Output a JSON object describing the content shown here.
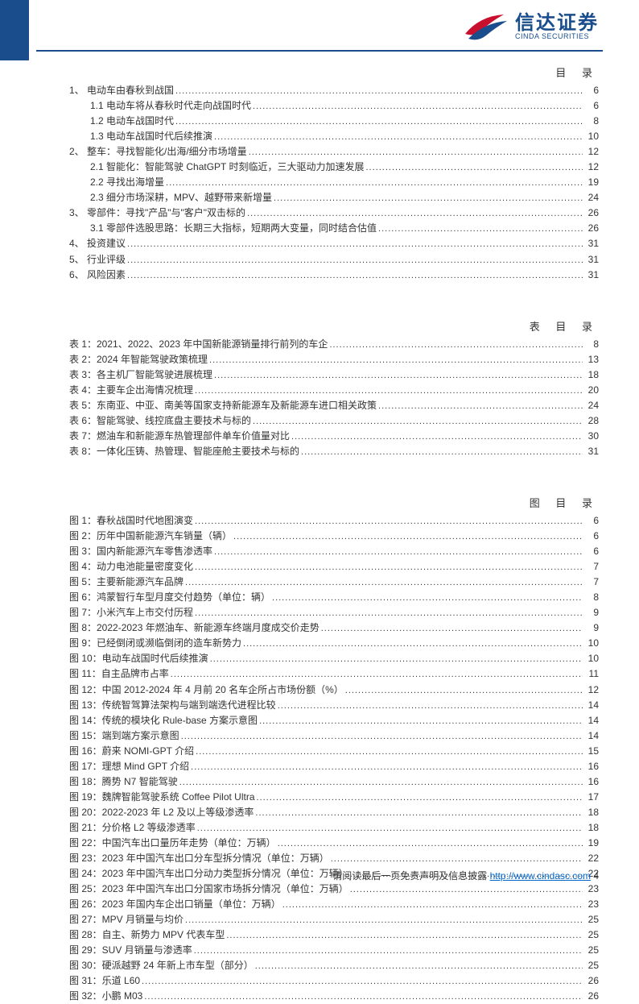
{
  "brand": {
    "name_cn": "信达证券",
    "name_en": "CINDA SECURITIES",
    "accent_color": "#1a4d8c",
    "swoosh_red": "#c8102e"
  },
  "sections": [
    {
      "title": "目 录",
      "items": [
        {
          "indent": 1,
          "label": "1、 电动车由春秋到战国",
          "page": "6"
        },
        {
          "indent": 2,
          "label": "1.1 电动车将从春秋时代走向战国时代",
          "page": "6"
        },
        {
          "indent": 2,
          "label": "1.2 电动车战国时代",
          "page": "8"
        },
        {
          "indent": 2,
          "label": "1.3 电动车战国时代后续推演",
          "page": "10"
        },
        {
          "indent": 1,
          "label": "2、 整车：寻找智能化/出海/细分市场增量",
          "page": "12"
        },
        {
          "indent": 2,
          "label": "2.1 智能化：智能驾驶 ChatGPT 时刻临近，三大驱动力加速发展",
          "page": "12"
        },
        {
          "indent": 2,
          "label": "2.2 寻找出海增量",
          "page": "19"
        },
        {
          "indent": 2,
          "label": "2.3 细分市场深耕，MPV、越野带来新增量",
          "page": "24"
        },
        {
          "indent": 1,
          "label": "3、 零部件：寻找\"产品\"与\"客户\"双击标的",
          "page": "26"
        },
        {
          "indent": 2,
          "label": "3.1 零部件选股思路：长期三大指标，短期两大变量，同时结合估值",
          "page": "26"
        },
        {
          "indent": 1,
          "label": "4、 投资建议",
          "page": "31"
        },
        {
          "indent": 1,
          "label": "5、 行业评级",
          "page": "31"
        },
        {
          "indent": 1,
          "label": "6、 风险因素",
          "page": "31"
        }
      ]
    },
    {
      "title": "表 目 录",
      "items": [
        {
          "indent": 1,
          "label": "表 1：2021、2022、2023 年中国新能源销量排行前列的车企",
          "page": "8"
        },
        {
          "indent": 1,
          "label": "表 2：2024 年智能驾驶政策梳理",
          "page": "13"
        },
        {
          "indent": 1,
          "label": "表 3：各主机厂智能驾驶进展梳理",
          "page": "18"
        },
        {
          "indent": 1,
          "label": "表 4：主要车企出海情况梳理",
          "page": "20"
        },
        {
          "indent": 1,
          "label": "表 5：东南亚、中亚、南美等国家支持新能源车及新能源车进口相关政策",
          "page": "24"
        },
        {
          "indent": 1,
          "label": "表 6：智能驾驶、线控底盘主要技术与标的",
          "page": "28"
        },
        {
          "indent": 1,
          "label": "表 7：燃油车和新能源车热管理部件单车价值量对比",
          "page": "30"
        },
        {
          "indent": 1,
          "label": "表 8：一体化压铸、热管理、智能座舱主要技术与标的",
          "page": "31"
        }
      ]
    },
    {
      "title": "图 目 录",
      "items": [
        {
          "indent": 1,
          "label": "图 1：春秋战国时代地图演变",
          "page": "6"
        },
        {
          "indent": 1,
          "label": "图 2：历年中国新能源汽车销量（辆）",
          "page": "6"
        },
        {
          "indent": 1,
          "label": "图 3：国内新能源汽车零售渗透率",
          "page": "6"
        },
        {
          "indent": 1,
          "label": "图 4：动力电池能量密度变化",
          "page": "7"
        },
        {
          "indent": 1,
          "label": "图 5：主要新能源汽车品牌",
          "page": "7"
        },
        {
          "indent": 1,
          "label": "图 6：鸿蒙智行车型月度交付趋势（单位：辆）",
          "page": "8"
        },
        {
          "indent": 1,
          "label": "图 7：小米汽车上市交付历程",
          "page": "9"
        },
        {
          "indent": 1,
          "label": "图 8：2022-2023 年燃油车、新能源车终端月度成交价走势",
          "page": "9"
        },
        {
          "indent": 1,
          "label": "图 9：已经倒闭或濒临倒闭的造车新势力",
          "page": "10"
        },
        {
          "indent": 1,
          "label": "图 10：电动车战国时代后续推演",
          "page": "10"
        },
        {
          "indent": 1,
          "label": "图 11：自主品牌市占率",
          "page": "11"
        },
        {
          "indent": 1,
          "label": "图 12：中国 2012-2024 年 4 月前 20 名车企所占市场份额（%）",
          "page": "12"
        },
        {
          "indent": 1,
          "label": "图 13：传统智驾算法架构与端到端迭代进程比较",
          "page": "14"
        },
        {
          "indent": 1,
          "label": "图 14：传统的模块化 Rule-base 方案示意图",
          "page": "14"
        },
        {
          "indent": 1,
          "label": "图 15：端到端方案示意图",
          "page": "14"
        },
        {
          "indent": 1,
          "label": "图 16：蔚来 NOMI-GPT 介绍",
          "page": "15"
        },
        {
          "indent": 1,
          "label": "图 17：理想 Mind GPT 介绍",
          "page": "16"
        },
        {
          "indent": 1,
          "label": "图 18：腾势 N7 智能驾驶",
          "page": "16"
        },
        {
          "indent": 1,
          "label": "图 19：魏牌智能驾驶系统 Coffee Pilot Ultra",
          "page": "17"
        },
        {
          "indent": 1,
          "label": "图 20：2022-2023 年 L2 及以上等级渗透率",
          "page": "18"
        },
        {
          "indent": 1,
          "label": "图 21：分价格 L2 等级渗透率",
          "page": "18"
        },
        {
          "indent": 1,
          "label": "图 22：中国汽车出口量历年走势（单位：万辆）",
          "page": "19"
        },
        {
          "indent": 1,
          "label": "图 23：2023 年中国汽车出口分车型拆分情况（单位：万辆）",
          "page": "22"
        },
        {
          "indent": 1,
          "label": "图 24：2023 年中国汽车出口分动力类型拆分情况（单位：万辆）",
          "page": "22"
        },
        {
          "indent": 1,
          "label": "图 25：2023 年中国汽车出口分国家市场拆分情况（单位：万辆）",
          "page": "23"
        },
        {
          "indent": 1,
          "label": "图 26：2023 年国内车企出口销量（单位：万辆）",
          "page": "23"
        },
        {
          "indent": 1,
          "label": "图 27：MPV 月销量与均价",
          "page": "25"
        },
        {
          "indent": 1,
          "label": "图 28：自主、新势力 MPV 代表车型",
          "page": "25"
        },
        {
          "indent": 1,
          "label": "图 29：SUV 月销量与渗透率",
          "page": "25"
        },
        {
          "indent": 1,
          "label": "图 30：硬派越野 24 年新上市车型（部分）",
          "page": "25"
        },
        {
          "indent": 1,
          "label": "图 31：乐道 L60",
          "page": "26"
        },
        {
          "indent": 1,
          "label": "图 32：小鹏 M03",
          "page": "26"
        }
      ]
    }
  ],
  "footer": {
    "text": "请阅读最后一页免责声明及信息披露 ",
    "link_text": "http://www.cindasc.com",
    "page_no": "  4"
  }
}
